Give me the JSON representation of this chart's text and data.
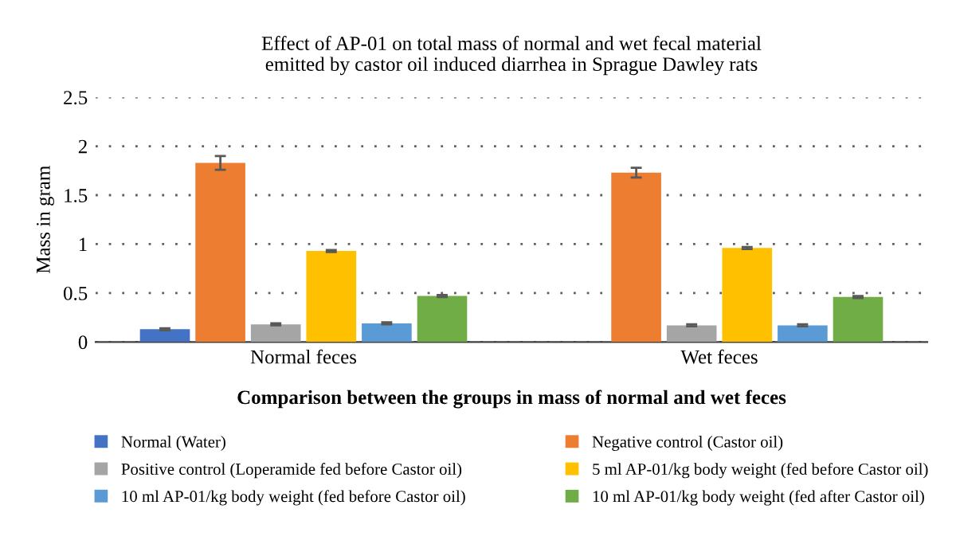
{
  "chart_data": {
    "type": "bar",
    "title": "Effect of AP-01 on total mass of normal and wet fecal material\nemitted by castor oil induced diarrhea in Sprague Dawley rats",
    "xlabel": "Comparison between the groups in mass of normal and wet feces",
    "ylabel": "Mass in gram",
    "categories": [
      "Normal feces",
      "Wet feces"
    ],
    "series": [
      {
        "name": "Normal (Water)",
        "color": "#4472c4",
        "values": [
          0.13,
          null
        ],
        "errors": [
          0.01,
          null
        ]
      },
      {
        "name": "Negative control (Castor oil)",
        "color": "#ed7d31",
        "values": [
          1.83,
          1.73
        ],
        "errors": [
          0.07,
          0.05
        ]
      },
      {
        "name": "Positive control (Loperamide fed before Castor oil)",
        "color": "#a5a5a5",
        "values": [
          0.18,
          0.17
        ],
        "errors": [
          0.01,
          0.01
        ]
      },
      {
        "name": "5 ml AP-01/kg body weight (fed before Castor oil)",
        "color": "#ffc000",
        "values": [
          0.93,
          0.96
        ],
        "errors": [
          0.01,
          0.01
        ]
      },
      {
        "name": "10 ml AP-01/kg body weight (fed before Castor oil)",
        "color": "#5b9bd5",
        "values": [
          0.19,
          0.17
        ],
        "errors": [
          0.01,
          0.01
        ]
      },
      {
        "name": "10 ml AP-01/kg body weight (fed after Castor oil)",
        "color": "#70ad47",
        "values": [
          0.47,
          0.46
        ],
        "errors": [
          0.01,
          0.01
        ]
      }
    ],
    "ylim": [
      0,
      2.5
    ],
    "yticks": [
      0,
      0.5,
      1,
      1.5,
      2,
      2.5
    ],
    "grid": "y",
    "legend": "bottom"
  }
}
